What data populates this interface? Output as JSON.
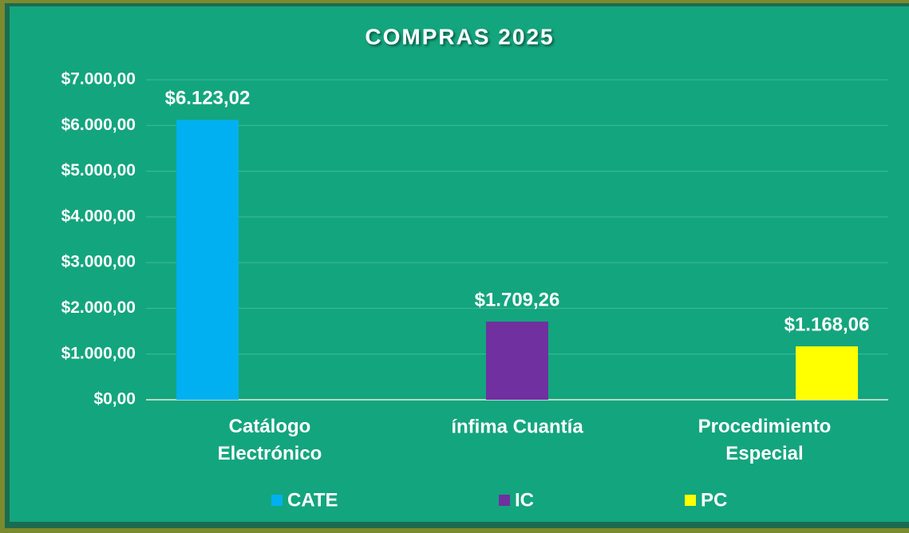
{
  "chart_data": {
    "type": "bar",
    "title": "COMPRAS 2025",
    "categories": [
      "Catálogo Electrónico",
      "ínfima Cuantía",
      "Procedimiento Especial"
    ],
    "series": [
      {
        "name": "CATE",
        "color": "#00b0f0",
        "values": [
          6123.02,
          null,
          null
        ],
        "value_labels": [
          "$6.123,02",
          null,
          null
        ]
      },
      {
        "name": "IC",
        "color": "#7030a0",
        "values": [
          null,
          1709.26,
          null
        ],
        "value_labels": [
          null,
          "$1.709,26",
          null
        ]
      },
      {
        "name": "PC",
        "color": "#ffff00",
        "values": [
          null,
          null,
          1168.06
        ],
        "value_labels": [
          null,
          null,
          "$1.168,06"
        ]
      }
    ],
    "ylim": [
      0,
      7000
    ],
    "yticks": [
      {
        "value": 0,
        "label": "$0,00"
      },
      {
        "value": 1000,
        "label": "$1.000,00"
      },
      {
        "value": 2000,
        "label": "$2.000,00"
      },
      {
        "value": 3000,
        "label": "$3.000,00"
      },
      {
        "value": 4000,
        "label": "$4.000,00"
      },
      {
        "value": 5000,
        "label": "$5.000,00"
      },
      {
        "value": 6000,
        "label": "$6.000,00"
      },
      {
        "value": 7000,
        "label": "$7.000,00"
      }
    ],
    "grid": true,
    "legend": "bottom"
  }
}
